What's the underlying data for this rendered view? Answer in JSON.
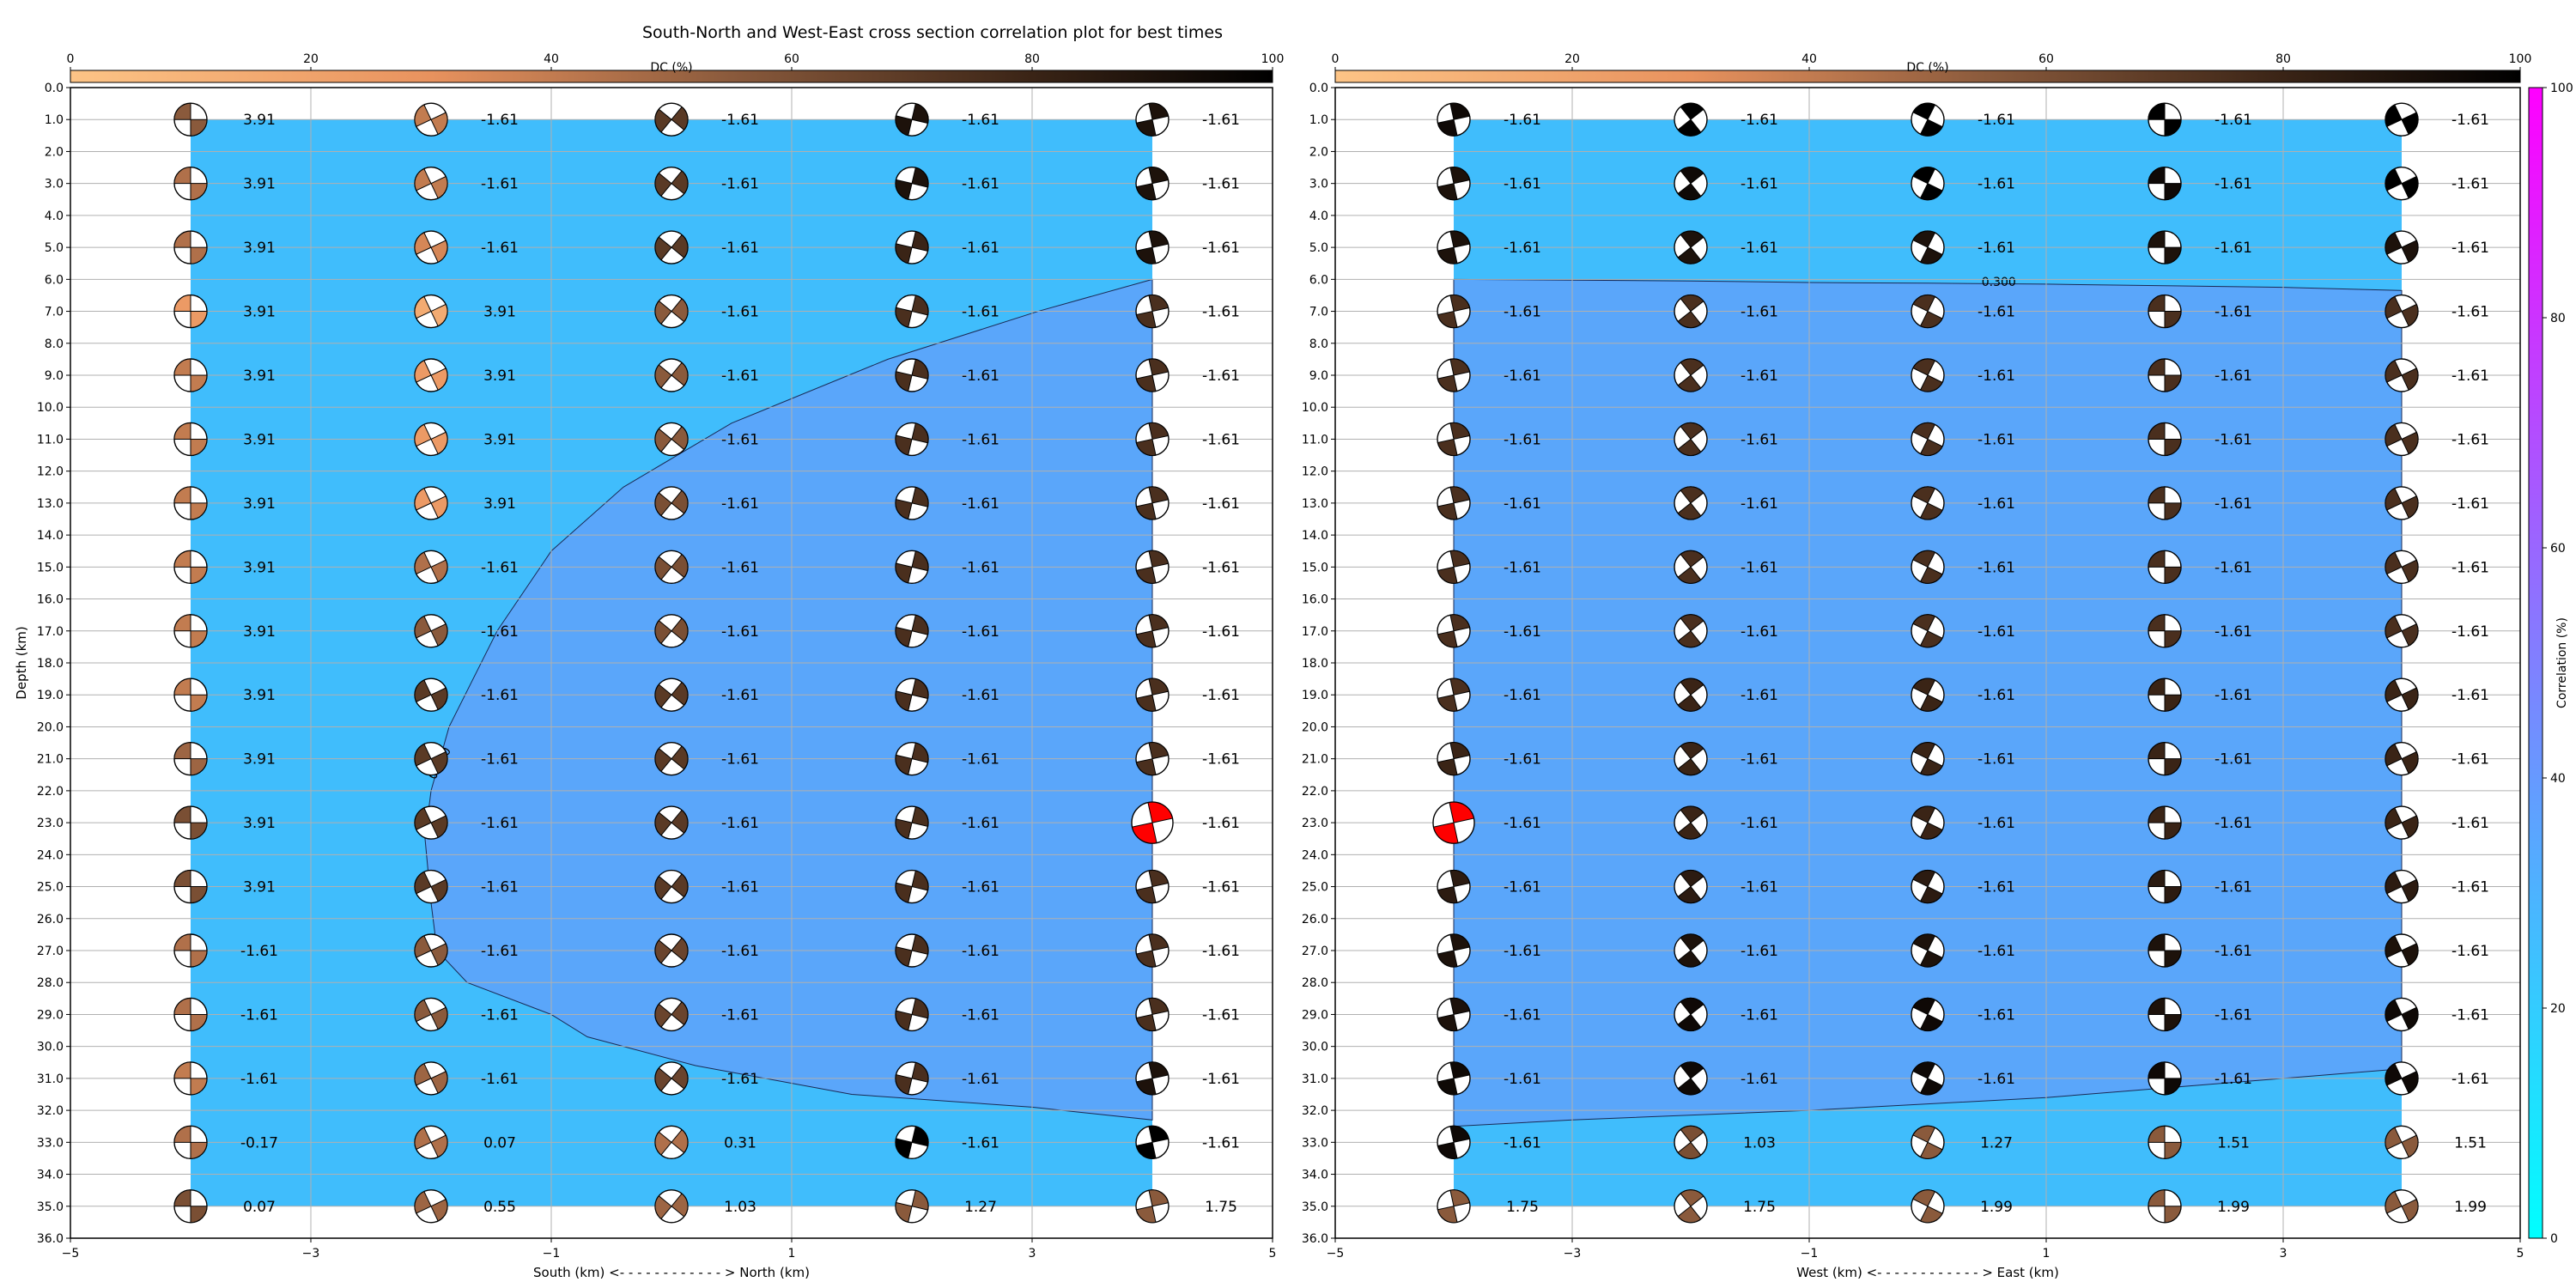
{
  "title": "South-North and West-East cross section correlation plot for best times",
  "chart_data": [
    {
      "type": "scatter",
      "name": "south-north",
      "xlabel": "South (km) <- - - - - - - - - - - - > North (km)",
      "ylabel": "Depth (km)",
      "xlim": [
        -5,
        5
      ],
      "ylim": [
        36,
        0
      ],
      "xticks": [
        "−5",
        "−3",
        "−1",
        "1",
        "3",
        "5"
      ],
      "yticks": [
        "0.0",
        "1.0",
        "2.0",
        "3.0",
        "4.0",
        "5.0",
        "6.0",
        "7.0",
        "8.0",
        "9.0",
        "10.0",
        "11.0",
        "12.0",
        "13.0",
        "14.0",
        "15.0",
        "16.0",
        "17.0",
        "18.0",
        "19.0",
        "20.0",
        "21.0",
        "22.0",
        "23.0",
        "24.0",
        "25.0",
        "26.0",
        "27.0",
        "28.0",
        "29.0",
        "30.0",
        "31.0",
        "32.0",
        "33.0",
        "34.0",
        "35.0",
        "36.0"
      ],
      "grid": true,
      "dc_colorbar": {
        "label": "DC (%)",
        "ticks": [
          "0",
          "20",
          "40",
          "60",
          "80",
          "100"
        ],
        "placement": "top"
      },
      "x": [
        -4,
        -2,
        0,
        2,
        4
      ],
      "depths": [
        1,
        3,
        5,
        7,
        9,
        11,
        13,
        15,
        17,
        19,
        21,
        23,
        25,
        27,
        29,
        31,
        33,
        35
      ],
      "values": [
        [
          "3.91",
          "-1.61",
          "-1.61",
          "-1.61",
          "-1.61"
        ],
        [
          "3.91",
          "-1.61",
          "-1.61",
          "-1.61",
          "-1.61"
        ],
        [
          "3.91",
          "-1.61",
          "-1.61",
          "-1.61",
          "-1.61"
        ],
        [
          "3.91",
          "3.91",
          "-1.61",
          "-1.61",
          "-1.61"
        ],
        [
          "3.91",
          "3.91",
          "-1.61",
          "-1.61",
          "-1.61"
        ],
        [
          "3.91",
          "3.91",
          "-1.61",
          "-1.61",
          "-1.61"
        ],
        [
          "3.91",
          "3.91",
          "-1.61",
          "-1.61",
          "-1.61"
        ],
        [
          "3.91",
          "-1.61",
          "-1.61",
          "-1.61",
          "-1.61"
        ],
        [
          "3.91",
          "-1.61",
          "-1.61",
          "-1.61",
          "-1.61"
        ],
        [
          "3.91",
          "-1.61",
          "-1.61",
          "-1.61",
          "-1.61"
        ],
        [
          "3.91",
          "-1.61",
          "-1.61",
          "-1.61",
          "-1.61"
        ],
        [
          "3.91",
          "-1.61",
          "-1.61",
          "-1.61",
          "-1.61"
        ],
        [
          "3.91",
          "-1.61",
          "-1.61",
          "-1.61",
          "-1.61"
        ],
        [
          "-1.61",
          "-1.61",
          "-1.61",
          "-1.61",
          "-1.61"
        ],
        [
          "-1.61",
          "-1.61",
          "-1.61",
          "-1.61",
          "-1.61"
        ],
        [
          "-1.61",
          "-1.61",
          "-1.61",
          "-1.61",
          "-1.61"
        ],
        [
          "-0.17",
          "0.07",
          "0.31",
          "-1.61",
          "-1.61"
        ],
        [
          "0.07",
          "0.55",
          "1.03",
          "1.27",
          "1.75"
        ]
      ],
      "dc": [
        [
          55,
          40,
          70,
          90,
          90
        ],
        [
          45,
          40,
          70,
          90,
          90
        ],
        [
          45,
          35,
          70,
          80,
          90
        ],
        [
          25,
          15,
          55,
          75,
          75
        ],
        [
          40,
          25,
          55,
          75,
          75
        ],
        [
          40,
          25,
          55,
          75,
          75
        ],
        [
          40,
          25,
          60,
          75,
          75
        ],
        [
          40,
          45,
          60,
          75,
          75
        ],
        [
          40,
          55,
          60,
          75,
          75
        ],
        [
          40,
          70,
          70,
          75,
          75
        ],
        [
          50,
          70,
          70,
          75,
          75
        ],
        [
          60,
          70,
          70,
          75,
          75
        ],
        [
          60,
          70,
          70,
          75,
          75
        ],
        [
          45,
          55,
          65,
          75,
          75
        ],
        [
          45,
          55,
          65,
          75,
          75
        ],
        [
          40,
          50,
          65,
          75,
          90
        ],
        [
          45,
          45,
          45,
          100,
          100
        ],
        [
          60,
          50,
          50,
          55,
          55
        ]
      ],
      "best": {
        "x": 4,
        "depth": 23,
        "color": "#ff0000"
      },
      "contour": {
        "label": "0.300",
        "x": [
          4,
          3.05,
          1.8,
          0.5,
          -0.4,
          -1.0,
          -1.45,
          -1.85,
          -2.0,
          -2.05,
          -2.0,
          -1.95,
          -1.7,
          -1.0,
          -0.7,
          0.2,
          1.5,
          3,
          4
        ],
        "depth": [
          6,
          7,
          8.5,
          10.5,
          12.5,
          14.5,
          17,
          20,
          22,
          23.5,
          25.5,
          27,
          28,
          29,
          29.7,
          30.6,
          31.5,
          31.9,
          32.3
        ]
      }
    },
    {
      "type": "scatter",
      "name": "west-east",
      "xlabel": "West (km) <- - - - - - - - - - - - > East (km)",
      "ylabel": "",
      "xlim": [
        -5,
        5
      ],
      "ylim": [
        36,
        0
      ],
      "xticks": [
        "−5",
        "−3",
        "−1",
        "1",
        "3",
        "5"
      ],
      "yticks": [
        "0.0",
        "1.0",
        "2.0",
        "3.0",
        "4.0",
        "5.0",
        "6.0",
        "7.0",
        "8.0",
        "9.0",
        "10.0",
        "11.0",
        "12.0",
        "13.0",
        "14.0",
        "15.0",
        "16.0",
        "17.0",
        "18.0",
        "19.0",
        "20.0",
        "21.0",
        "22.0",
        "23.0",
        "24.0",
        "25.0",
        "26.0",
        "27.0",
        "28.0",
        "29.0",
        "30.0",
        "31.0",
        "32.0",
        "33.0",
        "34.0",
        "35.0",
        "36.0"
      ],
      "grid": true,
      "dc_colorbar": {
        "label": "DC (%)",
        "ticks": [
          "0",
          "20",
          "40",
          "60",
          "80",
          "100"
        ],
        "placement": "top"
      },
      "x": [
        -4,
        -2,
        0,
        2,
        4
      ],
      "depths": [
        1,
        3,
        5,
        7,
        9,
        11,
        13,
        15,
        17,
        19,
        21,
        23,
        25,
        27,
        29,
        31,
        33,
        35
      ],
      "values": [
        [
          "-1.61",
          "-1.61",
          "-1.61",
          "-1.61",
          "-1.61"
        ],
        [
          "-1.61",
          "-1.61",
          "-1.61",
          "-1.61",
          "-1.61"
        ],
        [
          "-1.61",
          "-1.61",
          "-1.61",
          "-1.61",
          "-1.61"
        ],
        [
          "-1.61",
          "-1.61",
          "-1.61",
          "-1.61",
          "-1.61"
        ],
        [
          "-1.61",
          "-1.61",
          "-1.61",
          "-1.61",
          "-1.61"
        ],
        [
          "-1.61",
          "-1.61",
          "-1.61",
          "-1.61",
          "-1.61"
        ],
        [
          "-1.61",
          "-1.61",
          "-1.61",
          "-1.61",
          "-1.61"
        ],
        [
          "-1.61",
          "-1.61",
          "-1.61",
          "-1.61",
          "-1.61"
        ],
        [
          "-1.61",
          "-1.61",
          "-1.61",
          "-1.61",
          "-1.61"
        ],
        [
          "-1.61",
          "-1.61",
          "-1.61",
          "-1.61",
          "-1.61"
        ],
        [
          "-1.61",
          "-1.61",
          "-1.61",
          "-1.61",
          "-1.61"
        ],
        [
          "-1.61",
          "-1.61",
          "-1.61",
          "-1.61",
          "-1.61"
        ],
        [
          "-1.61",
          "-1.61",
          "-1.61",
          "-1.61",
          "-1.61"
        ],
        [
          "-1.61",
          "-1.61",
          "-1.61",
          "-1.61",
          "-1.61"
        ],
        [
          "-1.61",
          "-1.61",
          "-1.61",
          "-1.61",
          "-1.61"
        ],
        [
          "-1.61",
          "-1.61",
          "-1.61",
          "-1.61",
          "-1.61"
        ],
        [
          "-1.61",
          "1.03",
          "1.27",
          "1.51",
          "1.51"
        ],
        [
          "1.75",
          "1.75",
          "1.99",
          "1.99",
          "1.99"
        ]
      ],
      "dc": [
        [
          95,
          100,
          100,
          100,
          100
        ],
        [
          90,
          95,
          100,
          95,
          100
        ],
        [
          90,
          90,
          90,
          90,
          90
        ],
        [
          75,
          75,
          75,
          75,
          75
        ],
        [
          75,
          75,
          75,
          75,
          75
        ],
        [
          75,
          75,
          75,
          75,
          75
        ],
        [
          75,
          75,
          75,
          75,
          75
        ],
        [
          75,
          75,
          75,
          75,
          75
        ],
        [
          75,
          75,
          75,
          75,
          75
        ],
        [
          75,
          80,
          80,
          80,
          80
        ],
        [
          80,
          80,
          80,
          80,
          80
        ],
        [
          80,
          80,
          80,
          80,
          80
        ],
        [
          85,
          85,
          85,
          85,
          85
        ],
        [
          90,
          90,
          90,
          90,
          90
        ],
        [
          90,
          95,
          95,
          90,
          95
        ],
        [
          95,
          95,
          95,
          95,
          95
        ],
        [
          95,
          60,
          55,
          55,
          55
        ],
        [
          55,
          55,
          55,
          55,
          55
        ]
      ],
      "best": {
        "x": -4,
        "depth": 23,
        "color": "#ff0000"
      },
      "contour": {
        "label": "0.300",
        "x": [
          -4,
          -2,
          -1,
          0,
          1,
          2,
          3,
          4
        ],
        "depth": [
          6,
          6.05,
          6.1,
          6.12,
          6.15,
          6.2,
          6.25,
          6.35
        ],
        "x2": [
          -4,
          -3,
          -1,
          0,
          1,
          2,
          3,
          4
        ],
        "depth2": [
          32.5,
          32.3,
          32,
          31.8,
          31.6,
          31.3,
          31,
          30.7
        ]
      }
    }
  ],
  "correlation_colorbar": {
    "label": "Correlation (%)",
    "ticks": [
      "0",
      "20",
      "40",
      "60",
      "80",
      "100"
    ]
  },
  "colors": {
    "low_corr": "#40bdfc",
    "mid_corr": "#5aa6fa",
    "dc_low": "#fdc486",
    "dc_high": "#000000",
    "grid": "#b0b0b0"
  }
}
